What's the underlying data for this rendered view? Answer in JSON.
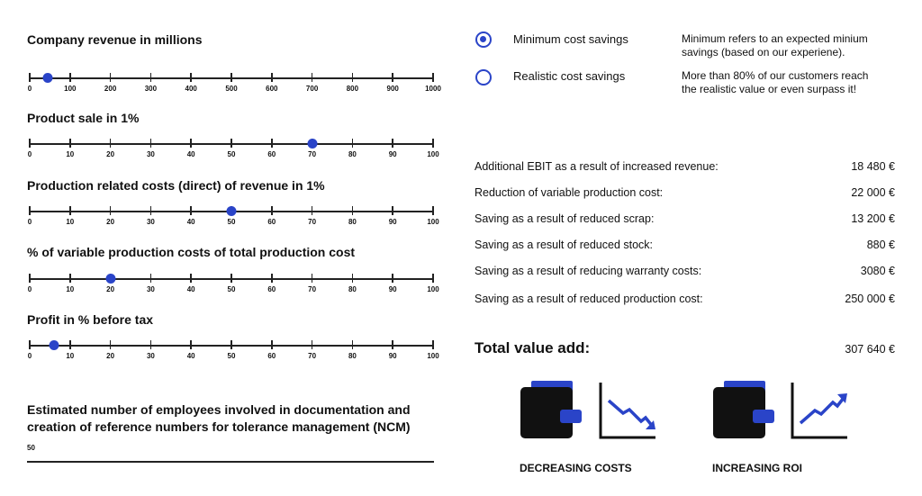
{
  "sliders": [
    {
      "title": "Company revenue in millions",
      "ticks": [
        "0",
        "100",
        "200",
        "300",
        "400",
        "500",
        "600",
        "700",
        "800",
        "900",
        "1000"
      ],
      "value_fraction": 0.045
    },
    {
      "title": "Product sale in 1%",
      "ticks": [
        "0",
        "10",
        "20",
        "30",
        "40",
        "50",
        "60",
        "70",
        "80",
        "90",
        "100"
      ],
      "value_fraction": 0.7
    },
    {
      "title": "Production related costs (direct) of revenue in 1%",
      "ticks": [
        "0",
        "10",
        "20",
        "30",
        "40",
        "50",
        "60",
        "70",
        "80",
        "90",
        "100"
      ],
      "value_fraction": 0.5
    },
    {
      "title": "% of variable production costs of total production cost",
      "ticks": [
        "0",
        "10",
        "20",
        "30",
        "40",
        "50",
        "60",
        "70",
        "80",
        "90",
        "100"
      ],
      "value_fraction": 0.2
    },
    {
      "title": "Profit in % before tax",
      "ticks": [
        "0",
        "10",
        "20",
        "30",
        "40",
        "50",
        "60",
        "70",
        "80",
        "90",
        "100"
      ],
      "value_fraction": 0.06
    }
  ],
  "ncm": {
    "title_line1": "Estimated number of employees involved in documentation and",
    "title_line2": "creation of reference numbers for tolerance management (NCM)",
    "value": "50"
  },
  "options": {
    "minimum": {
      "label": "Minimum cost savings",
      "desc_line1": "Minimum refers to an expected minium",
      "desc_line2": "savings (based on our experiene).",
      "selected": true
    },
    "realistic": {
      "label": "Realistic cost savings",
      "desc_line1": "More than 80% of our customers reach",
      "desc_line2": "the realistic value or even surpass it!",
      "selected": false
    }
  },
  "results": [
    {
      "label": "Additional EBIT as a result of increased revenue:",
      "value": "18 480 €"
    },
    {
      "label": "Reduction of variable production cost:",
      "value": "22 000 €"
    },
    {
      "label": "Saving as a result of reduced scrap:",
      "value": "13 200 €"
    },
    {
      "label": "Saving as a result of reduced stock:",
      "value": "880 €"
    },
    {
      "label": "Saving as a result of reducing warranty costs:",
      "value": "3080 €"
    },
    {
      "label": "Saving as a result of reduced production cost:",
      "value": "250 000 €"
    }
  ],
  "total": {
    "label": "Total value add:",
    "value": "307 640 €"
  },
  "badges": [
    {
      "label": "DECREASING COSTS",
      "icons": [
        "wallet-icon",
        "chart-down-icon"
      ]
    },
    {
      "label": "INCREASING ROI",
      "icons": [
        "wallet-icon",
        "chart-up-icon"
      ]
    }
  ],
  "colors": {
    "accent": "#2a44c8",
    "ink": "#111111",
    "icon_dark": "#111111"
  }
}
